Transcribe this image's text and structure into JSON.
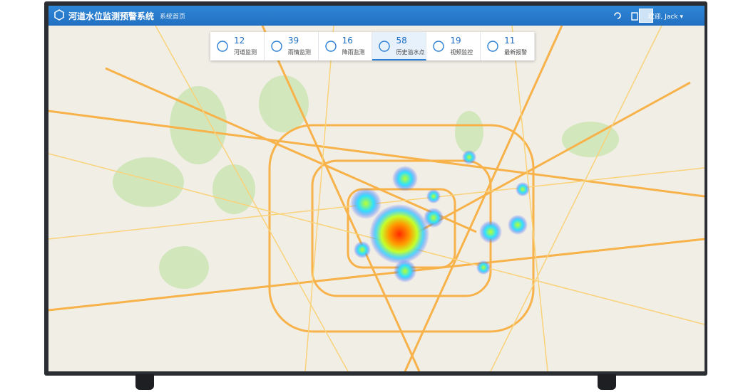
{
  "header": {
    "title": "河道水位监测预警系统",
    "nav": "系统首页",
    "user": "欢迎, Jack"
  },
  "stats": [
    {
      "value": 12,
      "label": "河道监测"
    },
    {
      "value": 39,
      "label": "雨情监测"
    },
    {
      "value": 16,
      "label": "降雨监测"
    },
    {
      "value": 58,
      "label": "历史溢水点"
    },
    {
      "value": 19,
      "label": "视频监控"
    },
    {
      "value": 11,
      "label": "最新报警"
    }
  ],
  "active_stat": 3
}
